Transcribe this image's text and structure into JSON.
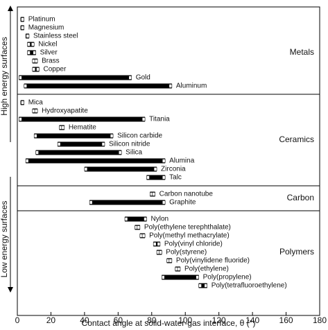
{
  "chart_data": {
    "type": "range-bar",
    "xlabel": "Contact angle at solid-water-gas interface, θ (°)",
    "side_labels": [
      "High energy surfaces",
      "Low energy surfaces"
    ],
    "xlim": [
      0,
      180
    ],
    "xticks": [
      0,
      20,
      40,
      60,
      80,
      100,
      120,
      140,
      160,
      180
    ],
    "color": "#000000",
    "groups": [
      {
        "label": "Metals",
        "categories": [
          "Platinum",
          "Magnesium",
          "Stainless steel",
          "Nickel",
          "Silver",
          "Brass",
          "Copper",
          "Gold",
          "Aluminum"
        ],
        "ranges": [
          [
            2,
            4
          ],
          [
            2,
            4
          ],
          [
            5,
            7
          ],
          [
            6,
            10
          ],
          [
            6,
            11
          ],
          [
            9,
            12
          ],
          [
            9,
            13
          ],
          [
            1,
            68
          ],
          [
            4,
            92
          ]
        ]
      },
      {
        "label": "Ceramics",
        "categories": [
          "Mica",
          "Hydroxyapatite",
          "Titania",
          "Hematite",
          "Silicon carbide",
          "Silicon nitride",
          "Silica",
          "Alumina",
          "Zirconia",
          "Talc"
        ],
        "ranges": [
          [
            2,
            4
          ],
          [
            9,
            12
          ],
          [
            1,
            76
          ],
          [
            25,
            28
          ],
          [
            10,
            57
          ],
          [
            24,
            52
          ],
          [
            11,
            62
          ],
          [
            5,
            88
          ],
          [
            40,
            83
          ],
          [
            77,
            88
          ]
        ]
      },
      {
        "label": "Carbon",
        "categories": [
          "Carbon nanotube",
          "Graphite"
        ],
        "ranges": [
          [
            79,
            82
          ],
          [
            43,
            88
          ]
        ]
      },
      {
        "label": "Polymers",
        "categories": [
          "Nylon",
          "Poly(ethylene terephthalate)",
          "Poly(methyl methacrylate)",
          "Poly(vinyl chloride)",
          "Poly(styrene)",
          "Poly(vinylidene fluoride)",
          "Poly(ethylene)",
          "Poly(propylene)",
          "Poly(tetrafluoroethylene)"
        ],
        "ranges": [
          [
            64,
            77
          ],
          [
            70,
            73
          ],
          [
            73,
            76
          ],
          [
            81,
            85
          ],
          [
            83,
            86
          ],
          [
            89,
            92
          ],
          [
            94,
            97
          ],
          [
            86,
            108
          ],
          [
            108,
            113
          ]
        ]
      }
    ]
  }
}
